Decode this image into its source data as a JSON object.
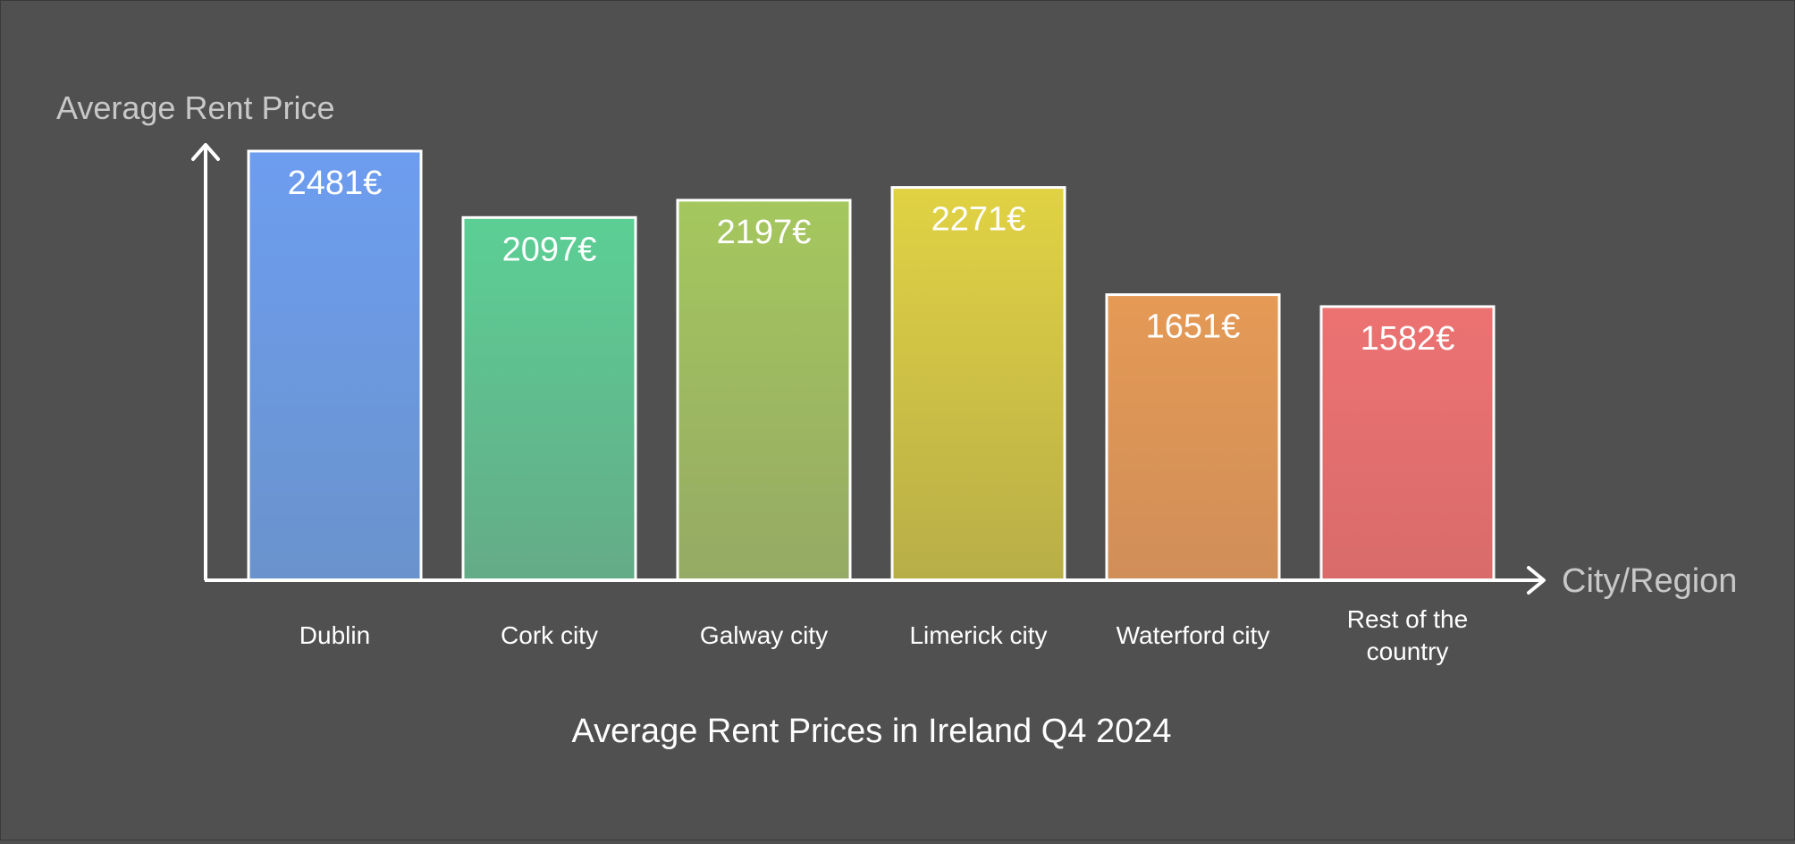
{
  "chart_data": {
    "type": "bar",
    "title": "Average Rent Prices in Ireland Q4 2024",
    "ylabel": "Average Rent Price",
    "xlabel": "City/Region",
    "value_suffix": "€",
    "categories": [
      "Dublin",
      "Cork city",
      "Galway city",
      "Limerick city",
      "Waterford city",
      "Rest of the country"
    ],
    "values": [
      2481,
      2097,
      2197,
      2271,
      1651,
      1582
    ],
    "data_labels": [
      "2481€",
      "2097€",
      "2197€",
      "2271€",
      "1651€",
      "1582€"
    ],
    "ylim": [
      0,
      2481
    ],
    "grid": false,
    "legend": "none",
    "colors": [
      [
        "#6d9df0",
        "#6a93cc"
      ],
      [
        "#5ccf95",
        "#64ab87"
      ],
      [
        "#a5c75e",
        "#95aa64"
      ],
      [
        "#e1d243",
        "#b8ae48"
      ],
      [
        "#e59a55",
        "#d08e58"
      ],
      [
        "#ed7272",
        "#d96b6b"
      ]
    ]
  },
  "theme": {
    "background": "#505050",
    "axis_color": "#ffffff",
    "muted_text": "#c8c8c8",
    "text": "#ffffff"
  }
}
